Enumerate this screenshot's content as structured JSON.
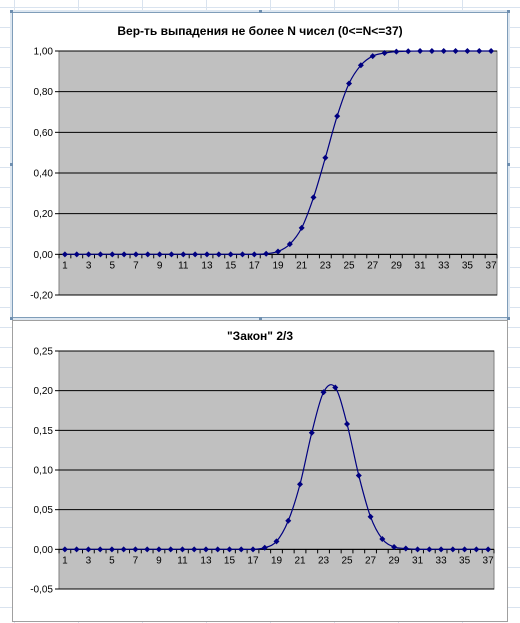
{
  "chart_data": [
    {
      "type": "line",
      "title": "Вер-ть выпадения не более N чисел (0<=N<=37)",
      "xlabel": "",
      "ylabel": "",
      "ylim": [
        -0.2,
        1.0
      ],
      "yticks": [
        "1,00",
        "0,80",
        "0,60",
        "0,40",
        "0,20",
        "0,00",
        "-0,20"
      ],
      "ytick_values": [
        1.0,
        0.8,
        0.6,
        0.4,
        0.2,
        0.0,
        -0.2
      ],
      "xtick_labels": [
        "1",
        "3",
        "5",
        "7",
        "9",
        "11",
        "13",
        "15",
        "17",
        "19",
        "21",
        "23",
        "25",
        "27",
        "29",
        "31",
        "33",
        "35",
        "37"
      ],
      "x": [
        1,
        2,
        3,
        4,
        5,
        6,
        7,
        8,
        9,
        10,
        11,
        12,
        13,
        14,
        15,
        16,
        17,
        18,
        19,
        20,
        21,
        22,
        23,
        24,
        25,
        26,
        27,
        28,
        29,
        30,
        31,
        32,
        33,
        34,
        35,
        36,
        37
      ],
      "series": [
        {
          "values": [
            0,
            0,
            0,
            0,
            0,
            0,
            0,
            0,
            0,
            0,
            0,
            0,
            0,
            0,
            0,
            0,
            0,
            0.003,
            0.014,
            0.05,
            0.13,
            0.28,
            0.475,
            0.68,
            0.84,
            0.93,
            0.975,
            0.99,
            0.997,
            0.999,
            1,
            1,
            1,
            1,
            1,
            1,
            1
          ],
          "color": "#000080"
        }
      ],
      "plot_background": "#c0c0c0",
      "grid": true,
      "legend": "none"
    },
    {
      "type": "line",
      "title": "\"Закон\" 2/3",
      "xlabel": "",
      "ylabel": "",
      "ylim": [
        -0.05,
        0.25
      ],
      "yticks": [
        "0,25",
        "0,20",
        "0,15",
        "0,10",
        "0,05",
        "0,00",
        "-0,05"
      ],
      "ytick_values": [
        0.25,
        0.2,
        0.15,
        0.1,
        0.05,
        0.0,
        -0.05
      ],
      "xtick_labels": [
        "1",
        "3",
        "5",
        "7",
        "9",
        "11",
        "13",
        "15",
        "17",
        "19",
        "21",
        "23",
        "25",
        "27",
        "29",
        "31",
        "33",
        "35",
        "37"
      ],
      "x": [
        1,
        2,
        3,
        4,
        5,
        6,
        7,
        8,
        9,
        10,
        11,
        12,
        13,
        14,
        15,
        16,
        17,
        18,
        19,
        20,
        21,
        22,
        23,
        24,
        25,
        26,
        27,
        28,
        29,
        30,
        31,
        32,
        33,
        34,
        35,
        36,
        37
      ],
      "series": [
        {
          "values": [
            0,
            0,
            0,
            0,
            0,
            0,
            0,
            0,
            0,
            0,
            0,
            0,
            0,
            0,
            0,
            0,
            0,
            0.002,
            0.01,
            0.036,
            0.082,
            0.147,
            0.198,
            0.204,
            0.158,
            0.093,
            0.041,
            0.013,
            0.003,
            0.001,
            0,
            0,
            0,
            0,
            0,
            0,
            0
          ],
          "color": "#000080"
        }
      ],
      "plot_background": "#c0c0c0",
      "grid": true,
      "legend": "none"
    }
  ]
}
